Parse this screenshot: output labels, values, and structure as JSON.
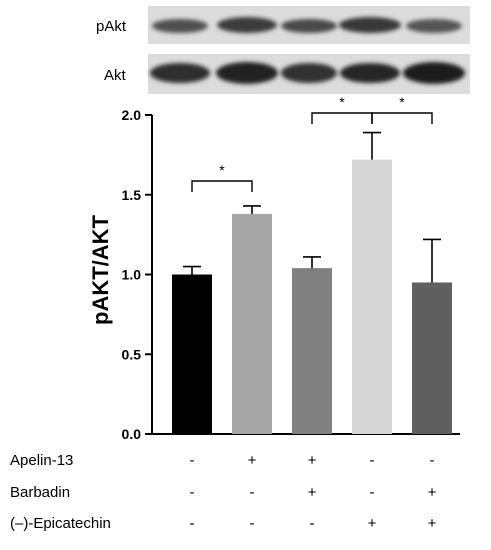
{
  "blots": {
    "pakt_label": "pAkt",
    "akt_label": "Akt"
  },
  "chart_data": {
    "type": "bar",
    "ylabel": "pAKT/AKT",
    "ylim": [
      0,
      2.0
    ],
    "yticks": [
      "0.0",
      "0.5",
      "1.0",
      "1.5",
      "2.0"
    ],
    "ytick_values": [
      0,
      0.5,
      1.0,
      1.5,
      2.0
    ],
    "categories": [
      "- / - / -",
      "+ / - / -",
      "+ / + / -",
      "- / - / +",
      "- / + / +"
    ],
    "values": [
      1.0,
      1.38,
      1.04,
      1.72,
      0.95
    ],
    "errors": [
      0.05,
      0.05,
      0.07,
      0.17,
      0.27
    ],
    "colors": [
      "#000000",
      "#a6a6a6",
      "#808080",
      "#d6d6d6",
      "#5f5f5f"
    ],
    "significance": [
      {
        "from": 0,
        "to": 1,
        "label": "*",
        "tier": 0
      },
      {
        "from": 2,
        "to": 3,
        "label": "*",
        "tier": 1
      },
      {
        "from": 3,
        "to": 4,
        "label": "*",
        "tier": 1
      }
    ]
  },
  "treatments": [
    {
      "label": "Apelin-13",
      "signs": [
        "-",
        "+",
        "+",
        "-",
        "-"
      ]
    },
    {
      "label": "Barbadin",
      "signs": [
        "-",
        "-",
        "+",
        "-",
        "+"
      ]
    },
    {
      "label": "(–)-Epicatechin",
      "signs": [
        "-",
        "-",
        "-",
        "+",
        "+"
      ]
    }
  ]
}
